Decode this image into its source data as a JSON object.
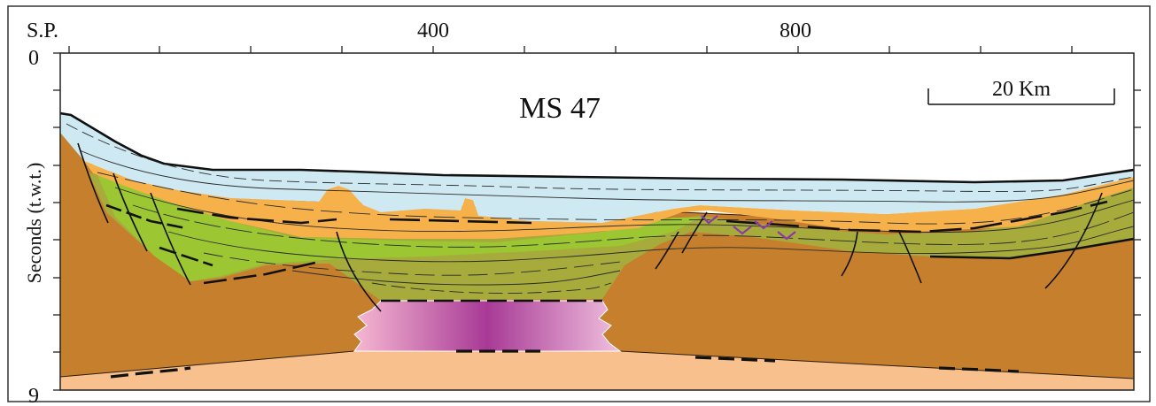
{
  "figure": {
    "title": "MS 47",
    "y_axis_label": "Seconds (t.w.t.)",
    "shotpoint_label": "S.P.",
    "shotpoint_ticks": [
      "400",
      "800"
    ],
    "depth_ticks": [
      "0",
      "9"
    ],
    "scale_bar": "20 Km"
  },
  "colors": {
    "water_column": "#cfe9f2",
    "orange_unit": "#f6b14a",
    "green_light": "#9cc732",
    "green_olive": "#a6ab3c",
    "basement_brown": "#c6802d",
    "deep_unit_peach": "#f7c08c",
    "salt_body_edge": "#f6b8d2",
    "salt_body_center": "#a83a96",
    "evaporite_marks": "#8b3aa6"
  }
}
